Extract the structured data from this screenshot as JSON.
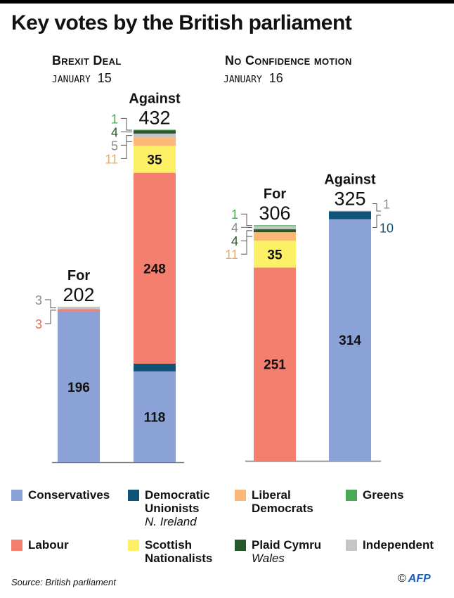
{
  "title": "Key votes by the British parliament",
  "colors": {
    "Conservatives": "#8aa2d6",
    "Democratic Unionists": "#0f5378",
    "Liberal Democrats": "#fbb877",
    "Greens": "#4aa955",
    "Labour": "#f47f6e",
    "Scottish Nationalists": "#fbf066",
    "Plaid Cymru": "#27582a",
    "Independent": "#c6c6c6"
  },
  "chart_data": [
    {
      "type": "bar",
      "stacked": true,
      "title": "Brexit Deal",
      "date_month": "JANUARY",
      "date_day": "15",
      "categories": [
        "For",
        "Against"
      ],
      "totals": [
        202,
        432
      ],
      "series": [
        {
          "name": "Conservatives",
          "values": [
            196,
            118
          ]
        },
        {
          "name": "Democratic Unionists",
          "values": [
            0,
            10
          ]
        },
        {
          "name": "Labour",
          "values": [
            3,
            248
          ]
        },
        {
          "name": "Scottish Nationalists",
          "values": [
            0,
            35
          ]
        },
        {
          "name": "Liberal Democrats",
          "values": [
            0,
            11
          ]
        },
        {
          "name": "Independent",
          "values": [
            3,
            5
          ]
        },
        {
          "name": "Plaid Cymru",
          "values": [
            0,
            4
          ]
        },
        {
          "name": "Greens",
          "values": [
            0,
            1
          ]
        }
      ],
      "inside_labels": [
        {
          "bar": 0,
          "party": "Conservatives",
          "text": "196"
        },
        {
          "bar": 1,
          "party": "Conservatives",
          "text": "118"
        },
        {
          "bar": 1,
          "party": "Labour",
          "text": "248"
        },
        {
          "bar": 1,
          "party": "Scottish Nationalists",
          "text": "35"
        }
      ],
      "side_labels": [
        {
          "bar": 0,
          "party": "Independent",
          "text": "3",
          "color": "#8c8c8c"
        },
        {
          "bar": 0,
          "party": "Labour",
          "text": "3",
          "color": "#e8685a"
        },
        {
          "bar": 1,
          "party": "Greens",
          "text": "1",
          "color": "#4aa955"
        },
        {
          "bar": 1,
          "party": "Plaid Cymru",
          "text": "4",
          "color": "#27582a"
        },
        {
          "bar": 1,
          "party": "Independent",
          "text": "5",
          "color": "#8c8c8c"
        },
        {
          "bar": 1,
          "party": "Liberal Democrats",
          "text": "11",
          "color": "#e8a96a"
        }
      ]
    },
    {
      "type": "bar",
      "stacked": true,
      "title": "No Confidence motion",
      "date_month": "JANUARY",
      "date_day": "16",
      "categories": [
        "For",
        "Against"
      ],
      "totals": [
        306,
        325
      ],
      "series": [
        {
          "name": "Conservatives",
          "values": [
            0,
            314
          ]
        },
        {
          "name": "Democratic Unionists",
          "values": [
            0,
            10
          ]
        },
        {
          "name": "Labour",
          "values": [
            251,
            0
          ]
        },
        {
          "name": "Scottish Nationalists",
          "values": [
            35,
            0
          ]
        },
        {
          "name": "Liberal Democrats",
          "values": [
            11,
            0
          ]
        },
        {
          "name": "Plaid Cymru",
          "values": [
            4,
            0
          ]
        },
        {
          "name": "Independent",
          "values": [
            4,
            1
          ]
        },
        {
          "name": "Greens",
          "values": [
            1,
            0
          ]
        }
      ],
      "inside_labels": [
        {
          "bar": 0,
          "party": "Labour",
          "text": "251"
        },
        {
          "bar": 0,
          "party": "Scottish Nationalists",
          "text": "35"
        },
        {
          "bar": 1,
          "party": "Conservatives",
          "text": "314"
        }
      ],
      "side_labels": [
        {
          "bar": 0,
          "party": "Greens",
          "text": "1",
          "color": "#4aa955"
        },
        {
          "bar": 0,
          "party": "Independent",
          "text": "4",
          "color": "#8c8c8c"
        },
        {
          "bar": 0,
          "party": "Plaid Cymru",
          "text": "4",
          "color": "#27582a"
        },
        {
          "bar": 0,
          "party": "Liberal Democrats",
          "text": "11",
          "color": "#e8a96a"
        },
        {
          "bar": 1,
          "party": "Independent",
          "text": "1",
          "color": "#8c8c8c"
        },
        {
          "bar": 1,
          "party": "Democratic Unionists",
          "text": "10",
          "color": "#0f5378"
        }
      ]
    }
  ],
  "legend": [
    {
      "name": "Conservatives",
      "sub": ""
    },
    {
      "name": "Democratic Unionists",
      "line1": "Democratic",
      "line2": "Unionists",
      "sub": "N. Ireland"
    },
    {
      "name": "Liberal Democrats",
      "line1": "Liberal",
      "line2": "Democrats",
      "sub": ""
    },
    {
      "name": "Greens",
      "sub": ""
    },
    {
      "name": "Labour",
      "sub": ""
    },
    {
      "name": "Scottish Nationalists",
      "line1": "Scottish",
      "line2": "Nationalists",
      "sub": ""
    },
    {
      "name": "Plaid Cymru",
      "sub": "Wales"
    },
    {
      "name": "Independent",
      "sub": ""
    }
  ],
  "source": "Source: British parliament",
  "credit": {
    "copyright": "©",
    "brand": "AFP"
  }
}
